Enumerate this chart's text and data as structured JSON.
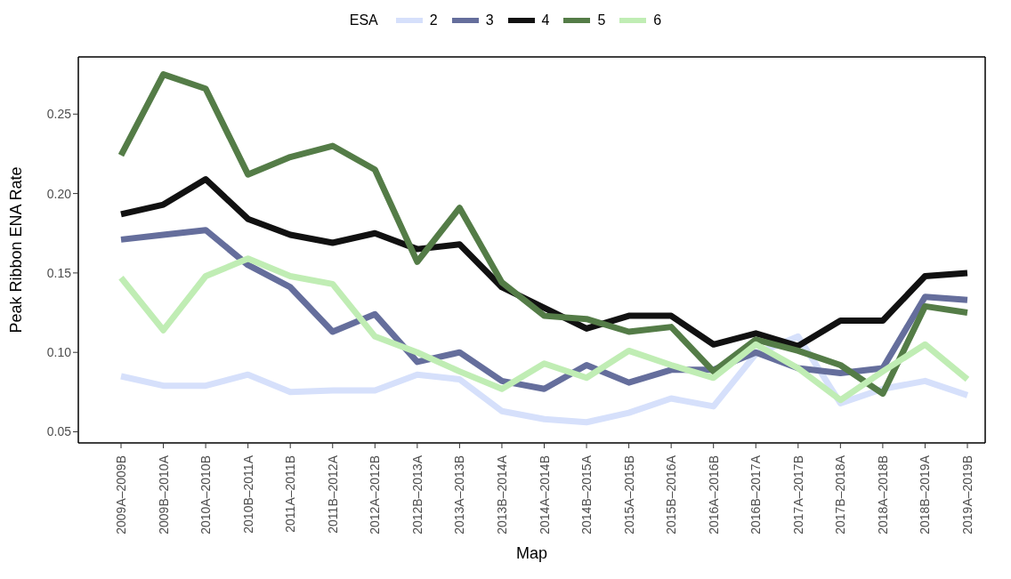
{
  "chart_data": {
    "type": "line",
    "xlabel": "Map",
    "ylabel": "Peak Ribbon ENA Rate",
    "legend_title": "ESA",
    "legend": "top",
    "categories": [
      "2009A–2009B",
      "2009B–2010A",
      "2010A–2010B",
      "2010B–2011A",
      "2011A–2011B",
      "2011B–2012A",
      "2012A–2012B",
      "2012B–2013A",
      "2013A–2013B",
      "2013B–2014A",
      "2014A–2014B",
      "2014B–2015A",
      "2015A–2015B",
      "2015B–2016A",
      "2016A–2016B",
      "2016B–2017A",
      "2017A–2017B",
      "2017B–2018A",
      "2018A–2018B",
      "2018B–2019A",
      "2019A–2019B"
    ],
    "series": [
      {
        "name": "2",
        "color": "#d6e0fb",
        "values": [
          0.085,
          0.079,
          0.079,
          0.086,
          0.075,
          0.076,
          0.076,
          0.086,
          0.083,
          0.063,
          0.058,
          0.056,
          0.062,
          0.071,
          0.066,
          0.099,
          0.11,
          0.068,
          0.077,
          0.082,
          0.073
        ]
      },
      {
        "name": "3",
        "color": "#656e9c",
        "values": [
          0.171,
          0.174,
          0.177,
          0.155,
          0.141,
          0.113,
          0.124,
          0.094,
          0.1,
          0.082,
          0.077,
          0.092,
          0.081,
          0.089,
          0.089,
          0.1,
          0.09,
          0.087,
          0.09,
          0.135,
          0.133
        ]
      },
      {
        "name": "4",
        "color": "#111111",
        "values": [
          0.187,
          0.193,
          0.209,
          0.184,
          0.174,
          0.169,
          0.175,
          0.165,
          0.168,
          0.141,
          0.128,
          0.115,
          0.123,
          0.123,
          0.105,
          0.112,
          0.104,
          0.12,
          0.12,
          0.148,
          0.15
        ]
      },
      {
        "name": "5",
        "color": "#547c47",
        "values": [
          0.224,
          0.275,
          0.266,
          0.212,
          0.223,
          0.23,
          0.215,
          0.157,
          0.191,
          0.144,
          0.123,
          0.121,
          0.113,
          0.116,
          0.088,
          0.108,
          0.101,
          0.092,
          0.074,
          0.129,
          0.125
        ]
      },
      {
        "name": "6",
        "color": "#c0edb4",
        "values": [
          0.147,
          0.114,
          0.148,
          0.159,
          0.148,
          0.143,
          0.11,
          0.1,
          0.088,
          0.077,
          0.093,
          0.084,
          0.101,
          0.092,
          0.084,
          0.105,
          0.09,
          0.07,
          0.088,
          0.105,
          0.083
        ]
      }
    ],
    "ylim": [
      0.043,
      0.286
    ],
    "yticks": [
      0.05,
      {
        "value": 0.1,
        "label": "0.10"
      },
      0.15,
      {
        "value": 0.2,
        "label": "0.20"
      },
      0.25
    ],
    "grid": false,
    "marker": "none",
    "line_style": "solid"
  }
}
